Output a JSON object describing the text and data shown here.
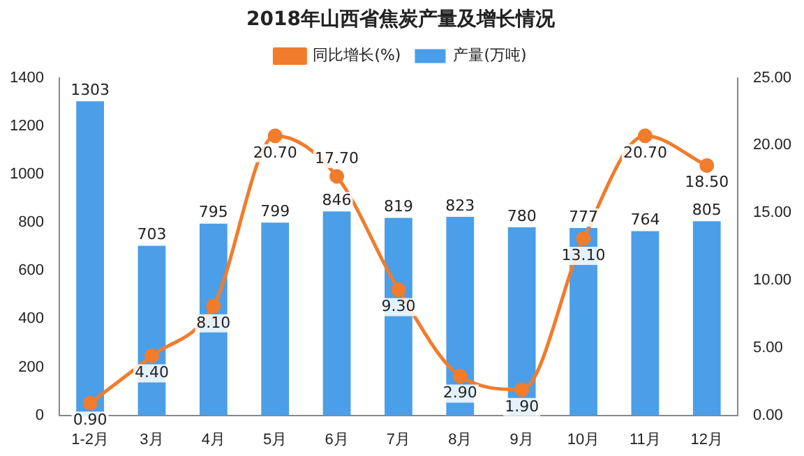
{
  "chart_data": {
    "type": "bar",
    "title": "2018年山西省焦炭产量及增长情况",
    "categories": [
      "1-2月",
      "3月",
      "4月",
      "5月",
      "6月",
      "7月",
      "8月",
      "9月",
      "10月",
      "11月",
      "12月"
    ],
    "series": [
      {
        "name": "产量(万吨)",
        "color": "#4a9fe8",
        "values": [
          1303,
          703,
          795,
          799,
          846,
          819,
          823,
          780,
          777,
          764,
          805
        ],
        "value_labels": [
          "1303",
          "703",
          "795",
          "799",
          "846",
          "819",
          "823",
          "780",
          "777",
          "764",
          "805"
        ]
      },
      {
        "name": "同比增长(%)",
        "type": "line",
        "axis": "y2",
        "color": "#f07c2c",
        "values": [
          0.9,
          4.4,
          8.1,
          20.7,
          17.7,
          9.3,
          2.9,
          1.9,
          13.1,
          20.7,
          18.5
        ],
        "value_labels": [
          "0.90",
          "4.40",
          "8.10",
          "20.70",
          "17.70",
          "9.30",
          "2.90",
          "1.90",
          "13.10",
          "20.70",
          "18.50"
        ]
      }
    ],
    "ylim": [
      0,
      1400
    ],
    "yticks": [
      0,
      200,
      400,
      600,
      800,
      1000,
      1200,
      1400
    ],
    "y2lim": [
      0,
      25
    ],
    "y2ticks": [
      {
        "value": 0,
        "label": "0.00"
      },
      {
        "value": 5,
        "label": "5.00"
      },
      {
        "value": 10,
        "label": "10.00"
      },
      {
        "value": 15,
        "label": "15.00"
      },
      {
        "value": 20,
        "label": "20.00"
      },
      {
        "value": 25,
        "label": "25.00"
      }
    ],
    "legend": "top",
    "marker": "circle",
    "grid": false
  }
}
